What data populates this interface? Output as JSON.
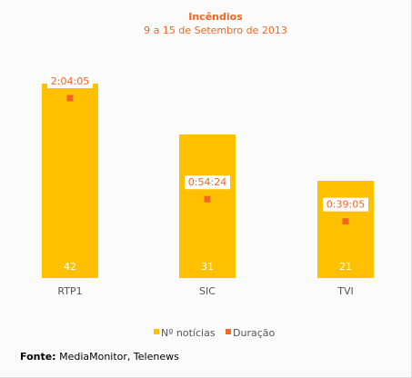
{
  "colors": {
    "bar": "#ffc000",
    "marker": "#f26522",
    "title": "#f26522",
    "axis_text": "#555555",
    "background": "#fbfbfb"
  },
  "chart_data": {
    "type": "bar",
    "title": "Incêndios",
    "subtitle": "9 a 15 de Setembro de 2013",
    "categories": [
      "RTP1",
      "SIC",
      "TVI"
    ],
    "series": [
      {
        "name": "Nº notícias",
        "kind": "bar",
        "values": [
          42,
          31,
          21
        ]
      },
      {
        "name": "Duração",
        "kind": "marker",
        "values": [
          "2:04:05",
          "0:54:24",
          "0:39:05"
        ],
        "seconds": [
          7445,
          3264,
          2345
        ]
      }
    ],
    "legend_position": "bottom",
    "grid": false
  },
  "source": {
    "label": "Fonte:",
    "text": "MediaMonitor, Telenews"
  }
}
